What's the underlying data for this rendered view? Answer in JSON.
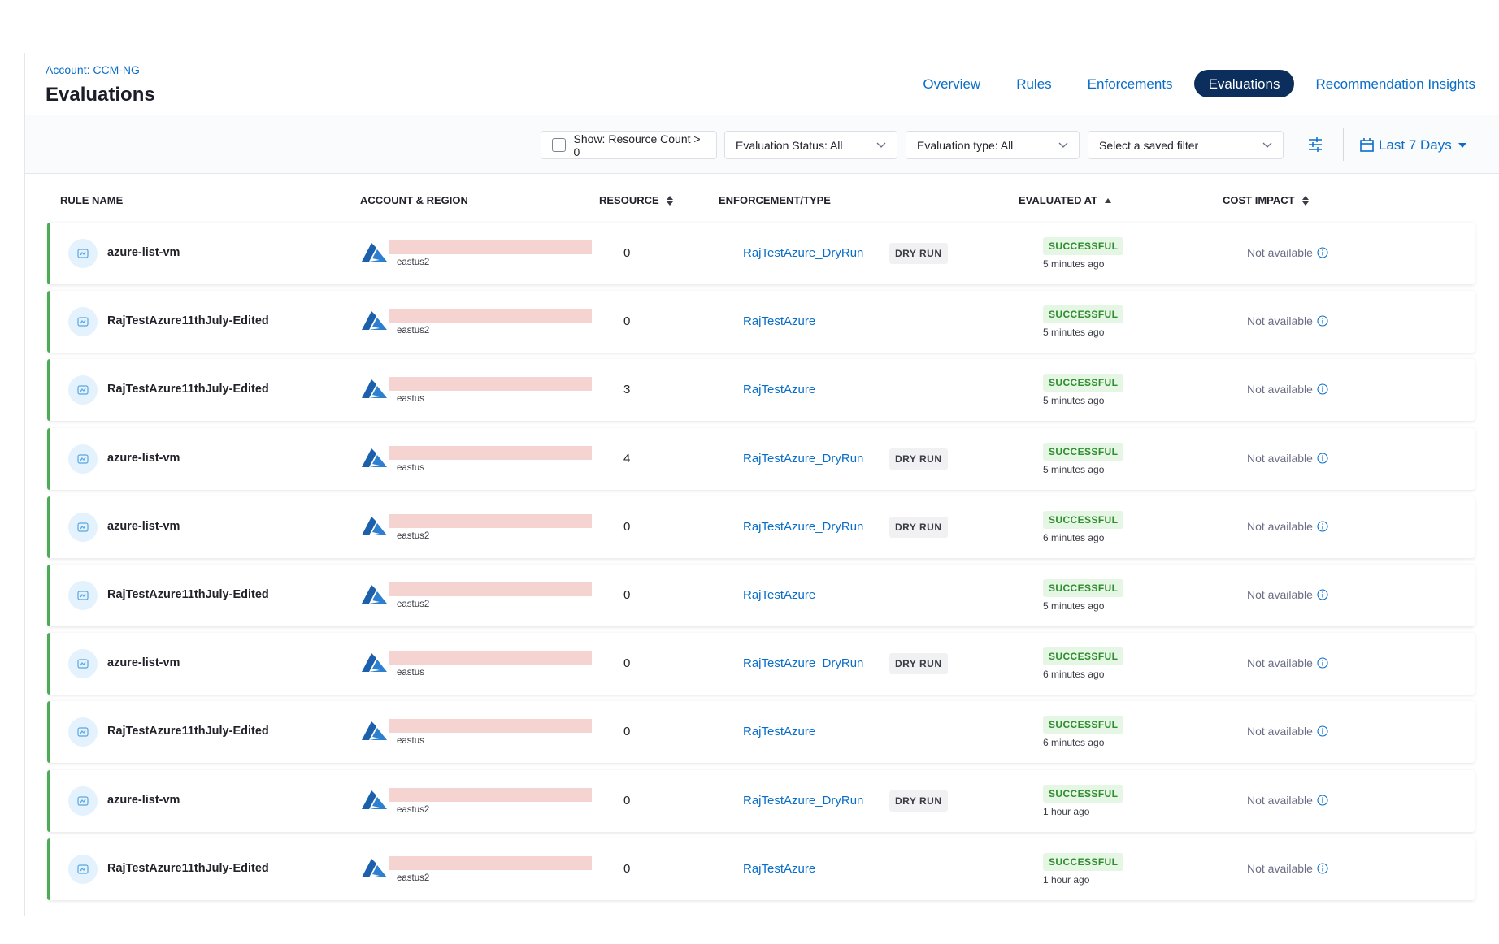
{
  "header": {
    "breadcrumb": "Account: CCM-NG",
    "title": "Evaluations",
    "tabs": [
      "Overview",
      "Rules",
      "Enforcements",
      "Evaluations",
      "Recommendation Insights"
    ],
    "active_tab": 3
  },
  "filters": {
    "checkbox": "Show: Resource Count > 0",
    "dropdowns": [
      "Evaluation Status: All",
      "Evaluation type: All",
      "Select a saved filter"
    ],
    "date": "Last 7 Days"
  },
  "table": {
    "columns": [
      "RULE NAME",
      "ACCOUNT & REGION",
      "RESOURCE",
      "ENFORCEMENT/TYPE",
      "EVALUATED AT",
      "COST IMPACT"
    ],
    "rows": [
      {
        "rule": "azure-list-vm",
        "region": "eastus2",
        "resource": 0,
        "enforcement": "RajTestAzure_DryRun",
        "type": "DRY RUN",
        "status": "SUCCESSFUL",
        "time": "5 minutes ago",
        "cost": "Not available"
      },
      {
        "rule": "RajTestAzure11thJuly-Edited",
        "region": "eastus2",
        "resource": 0,
        "enforcement": "RajTestAzure",
        "status": "SUCCESSFUL",
        "time": "5 minutes ago",
        "cost": "Not available"
      },
      {
        "rule": "RajTestAzure11thJuly-Edited",
        "region": "eastus",
        "resource": 3,
        "enforcement": "RajTestAzure",
        "status": "SUCCESSFUL",
        "time": "5 minutes ago",
        "cost": "Not available"
      },
      {
        "rule": "azure-list-vm",
        "region": "eastus",
        "resource": 4,
        "enforcement": "RajTestAzure_DryRun",
        "type": "DRY RUN",
        "status": "SUCCESSFUL",
        "time": "5 minutes ago",
        "cost": "Not available"
      },
      {
        "rule": "azure-list-vm",
        "region": "eastus2",
        "resource": 0,
        "enforcement": "RajTestAzure_DryRun",
        "type": "DRY RUN",
        "status": "SUCCESSFUL",
        "time": "6 minutes ago",
        "cost": "Not available"
      },
      {
        "rule": "RajTestAzure11thJuly-Edited",
        "region": "eastus2",
        "resource": 0,
        "enforcement": "RajTestAzure",
        "status": "SUCCESSFUL",
        "time": "5 minutes ago",
        "cost": "Not available"
      },
      {
        "rule": "azure-list-vm",
        "region": "eastus",
        "resource": 0,
        "enforcement": "RajTestAzure_DryRun",
        "type": "DRY RUN",
        "status": "SUCCESSFUL",
        "time": "6 minutes ago",
        "cost": "Not available"
      },
      {
        "rule": "RajTestAzure11thJuly-Edited",
        "region": "eastus",
        "resource": 0,
        "enforcement": "RajTestAzure",
        "status": "SUCCESSFUL",
        "time": "6 minutes ago",
        "cost": "Not available"
      },
      {
        "rule": "azure-list-vm",
        "region": "eastus2",
        "resource": 0,
        "enforcement": "RajTestAzure_DryRun",
        "type": "DRY RUN",
        "status": "SUCCESSFUL",
        "time": "1 hour ago",
        "cost": "Not available"
      },
      {
        "rule": "RajTestAzure11thJuly-Edited",
        "region": "eastus2",
        "resource": 0,
        "enforcement": "RajTestAzure",
        "status": "SUCCESSFUL",
        "time": "1 hour ago",
        "cost": "Not available"
      }
    ]
  }
}
